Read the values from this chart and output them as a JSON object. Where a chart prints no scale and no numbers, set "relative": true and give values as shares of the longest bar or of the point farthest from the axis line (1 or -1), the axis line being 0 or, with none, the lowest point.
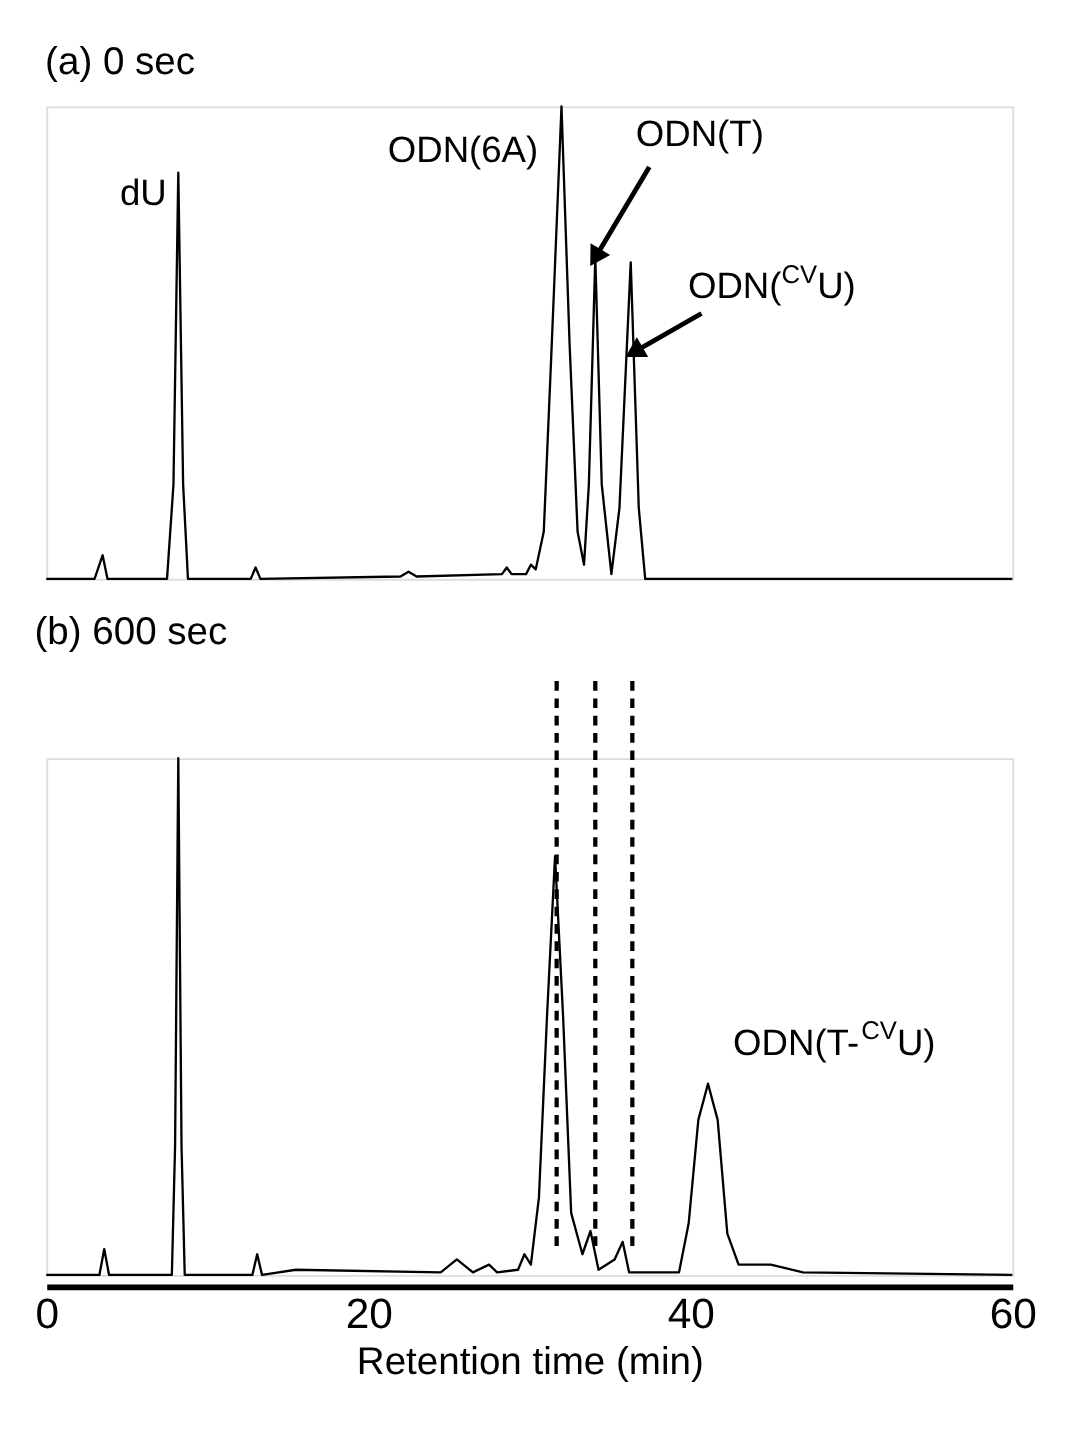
{
  "chart_data": [
    {
      "type": "line",
      "title": "(a) 0 sec",
      "relative": true,
      "xlim": [
        0,
        60
      ],
      "tick_labels": false,
      "grid": false,
      "legend": false,
      "marker": "none",
      "line_style": "solid",
      "series": [
        {
          "color": "#000000",
          "x": [
            0,
            3.0,
            3.5,
            3.8,
            7.5,
            7.9,
            8.2,
            8.5,
            8.8,
            12.7,
            13.0,
            13.3,
            22,
            22.5,
            23,
            28.3,
            28.6,
            28.9,
            29.8,
            30.1,
            30.4,
            30.9,
            31.4,
            32.0,
            32.5,
            33.0,
            33.4,
            33.7,
            34.1,
            34.5,
            35.1,
            35.6,
            36.3,
            36.8,
            37.2,
            60
          ],
          "values": [
            0,
            0,
            0.05,
            0,
            0,
            0.2,
            0.86,
            0.2,
            0,
            0,
            0.024,
            0,
            0.005,
            0.015,
            0.005,
            0.01,
            0.024,
            0.01,
            0.01,
            0.03,
            0.02,
            0.1,
            0.5,
            1.0,
            0.5,
            0.1,
            0.03,
            0.2,
            0.68,
            0.2,
            0.01,
            0.15,
            0.67,
            0.15,
            0,
            0
          ]
        }
      ],
      "annotations": [
        {
          "text": "dU",
          "x": 8.2,
          "y": 0.86
        },
        {
          "text": "ODN(6A)",
          "x": 32.0,
          "y": 1.0
        },
        {
          "text": "ODN(T)",
          "x": 34.1,
          "y": 0.68
        },
        {
          "text": "ODN($^{CV}$U)",
          "x": 36.5,
          "y": 0.48
        }
      ]
    },
    {
      "type": "line",
      "title": "(b) 600 sec",
      "relative": true,
      "xlim": [
        0,
        60
      ],
      "xticks": [
        0,
        20,
        40,
        60
      ],
      "xlabel": "Retention time (min)",
      "tick_labels": "x",
      "grid": false,
      "legend": false,
      "marker": "none",
      "line_style": "solid",
      "series": [
        {
          "color": "#000000",
          "x": [
            0,
            3.3,
            3.6,
            3.9,
            7.8,
            8.0,
            8.2,
            8.4,
            8.6,
            12.8,
            13.1,
            13.4,
            15.5,
            24.5,
            25.5,
            26.5,
            27.5,
            28,
            29.3,
            29.7,
            30.1,
            30.6,
            31.1,
            31.6,
            32.1,
            32.6,
            33.3,
            33.8,
            34.3,
            35.3,
            35.8,
            36.2,
            39.3,
            39.9,
            40.5,
            41.1,
            41.7,
            42.3,
            43.0,
            45.0,
            47,
            60
          ],
          "values": [
            0,
            0,
            0.05,
            0,
            0,
            0.25,
            1.0,
            0.25,
            0,
            0,
            0.04,
            0,
            0.01,
            0.005,
            0.03,
            0.005,
            0.02,
            0.005,
            0.01,
            0.04,
            0.02,
            0.15,
            0.5,
            0.81,
            0.5,
            0.12,
            0.04,
            0.085,
            0.01,
            0.03,
            0.064,
            0.005,
            0.005,
            0.1,
            0.3,
            0.37,
            0.3,
            0.08,
            0.02,
            0.02,
            0.005,
            0
          ]
        }
      ],
      "ref_lines": [
        {
          "axis": "x",
          "value": 31.7,
          "line_style": "dashed",
          "color": "#000000"
        },
        {
          "axis": "x",
          "value": 34.1,
          "line_style": "dashed",
          "color": "#000000"
        },
        {
          "axis": "x",
          "value": 36.4,
          "line_style": "dashed",
          "color": "#000000"
        }
      ],
      "annotations": [
        {
          "text": "ODN(T-$^{CV}$U)",
          "x": 41.1,
          "y": 0.37
        }
      ]
    }
  ]
}
